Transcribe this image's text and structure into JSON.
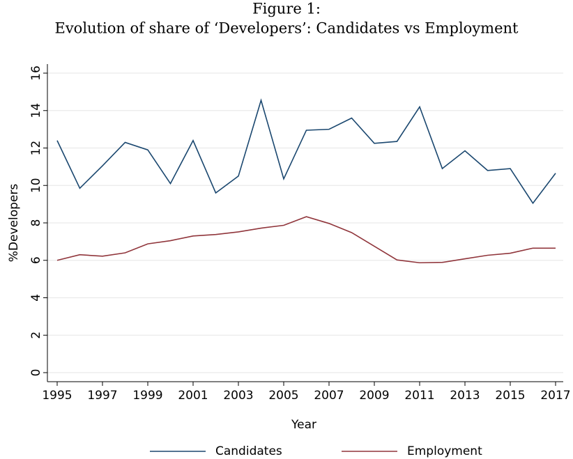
{
  "chart_data": {
    "type": "line",
    "title": "Figure 1:",
    "subtitle": "Evolution of share of ‘Developers’: Candidates vs Employment",
    "x_label": "Year",
    "y_label": "%Developers",
    "x": [
      1995,
      1996,
      1997,
      1998,
      1999,
      2000,
      2001,
      2002,
      2003,
      2004,
      2005,
      2006,
      2007,
      2008,
      2009,
      2010,
      2011,
      2012,
      2013,
      2014,
      2015,
      2016,
      2017
    ],
    "series": [
      {
        "name": "Candidates",
        "color": "#1a476f",
        "values": [
          12.4,
          9.85,
          11.05,
          12.3,
          11.9,
          10.1,
          12.4,
          9.6,
          10.5,
          14.55,
          10.35,
          12.95,
          13.0,
          13.6,
          12.25,
          12.35,
          14.2,
          10.9,
          11.85,
          10.8,
          10.9,
          9.05,
          10.65
        ]
      },
      {
        "name": "Employment",
        "color": "#90353b",
        "values": [
          6.0,
          6.3,
          6.22,
          6.4,
          6.88,
          7.05,
          7.3,
          7.38,
          7.52,
          7.72,
          7.87,
          8.33,
          7.97,
          7.48,
          6.75,
          6.02,
          5.87,
          5.89,
          6.08,
          6.27,
          6.38,
          6.65,
          6.65
        ]
      }
    ],
    "xlim": [
      1995,
      2017
    ],
    "xticks": [
      1995,
      1997,
      1999,
      2001,
      2003,
      2005,
      2007,
      2009,
      2011,
      2013,
      2015,
      2017
    ],
    "ylim": [
      0,
      16
    ],
    "yticks": [
      0,
      2,
      4,
      6,
      8,
      10,
      12,
      14,
      16
    ],
    "grid": true,
    "legend": "bottom"
  }
}
